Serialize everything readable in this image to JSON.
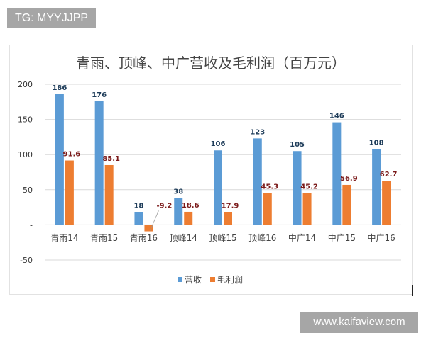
{
  "watermarks": {
    "top_left": "TG: MYYJJPP",
    "bottom_right": "www.kaifaview.com"
  },
  "chart_data": {
    "type": "bar",
    "title": "青雨、顶峰、中广营收及毛利润（百万元）",
    "categories": [
      "青雨14",
      "青雨15",
      "青雨16",
      "顶峰14",
      "顶峰15",
      "顶峰16",
      "中广14",
      "中广15",
      "中广16"
    ],
    "series": [
      {
        "name": "营收",
        "color": "#5b9bd5",
        "values": [
          186,
          176,
          18,
          38,
          106,
          123,
          105,
          146,
          108
        ]
      },
      {
        "name": "毛利润",
        "color": "#ed7d31",
        "values": [
          91.6,
          85.1,
          -9.2,
          18.6,
          17.9,
          45.3,
          45.2,
          56.9,
          62.7
        ]
      }
    ],
    "data_label_colors": {
      "营收": "#1f3d5a",
      "毛利润": "#7b1a1a"
    },
    "ylim": [
      -50,
      200
    ],
    "yticks": [
      200,
      150,
      100,
      50,
      0,
      -50
    ],
    "ytick_labels": [
      "200",
      "150",
      "100",
      "50",
      "-",
      "-50"
    ],
    "grid": true,
    "legend": "bottom"
  }
}
